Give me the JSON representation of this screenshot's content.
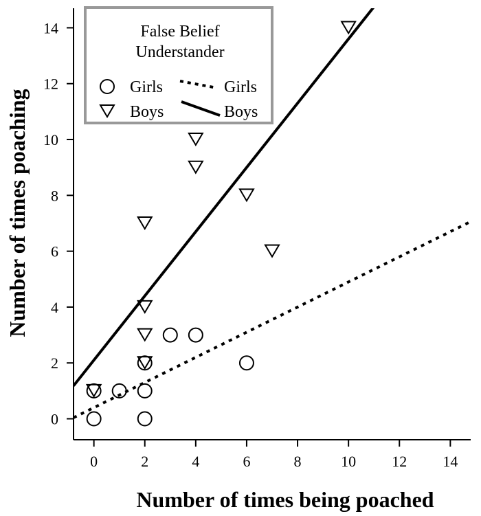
{
  "chart_data": {
    "type": "scatter",
    "title": "",
    "xlabel": "Number of times being poached",
    "ylabel": "Number of times poaching",
    "xlim": [
      -0.8,
      14.8
    ],
    "ylim": [
      -0.75,
      14.7
    ],
    "x_ticks": [
      0,
      2,
      4,
      6,
      8,
      10,
      12,
      14
    ],
    "y_ticks": [
      0,
      2,
      4,
      6,
      8,
      10,
      12,
      14
    ],
    "grid": false,
    "legend": {
      "placement": "top-left",
      "title_lines": [
        "False Belief",
        "Understander"
      ],
      "entries": [
        {
          "label": "Girls",
          "kind": "marker",
          "marker": "circle"
        },
        {
          "label": "Girls",
          "kind": "line",
          "style": "dotted"
        },
        {
          "label": "Boys",
          "kind": "marker",
          "marker": "triangle-down"
        },
        {
          "label": "Boys",
          "kind": "line",
          "style": "solid"
        }
      ]
    },
    "series": [
      {
        "name": "Girls",
        "marker": "circle",
        "points": [
          [
            0,
            0
          ],
          [
            0,
            1
          ],
          [
            1,
            1
          ],
          [
            2,
            0
          ],
          [
            2,
            1
          ],
          [
            2,
            2
          ],
          [
            3,
            3
          ],
          [
            4,
            3
          ],
          [
            6,
            2
          ]
        ]
      },
      {
        "name": "Boys",
        "marker": "triangle-down",
        "points": [
          [
            0,
            1
          ],
          [
            2,
            2
          ],
          [
            2,
            3
          ],
          [
            2,
            4
          ],
          [
            2,
            7
          ],
          [
            4,
            9
          ],
          [
            4,
            10
          ],
          [
            6,
            8
          ],
          [
            7,
            6
          ],
          [
            10,
            14
          ]
        ]
      }
    ],
    "fit_lines": [
      {
        "name": "Girls",
        "style": "dotted",
        "intercept": 0.4,
        "slope": 0.45
      },
      {
        "name": "Boys",
        "style": "solid",
        "intercept": 2.1,
        "slope": 1.15
      }
    ]
  }
}
